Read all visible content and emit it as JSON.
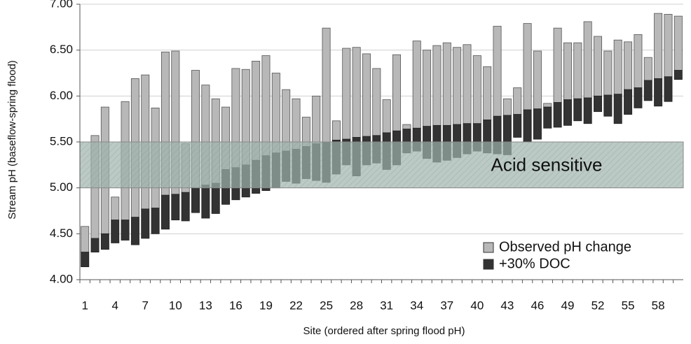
{
  "chart_data": {
    "type": "floating_bar",
    "x_label": "Site (ordered after spring flood pH)",
    "y_label": "Stream pH (baseflow-spring flood)",
    "categories": [
      1,
      null,
      null,
      4,
      null,
      null,
      7,
      null,
      null,
      10,
      null,
      null,
      13,
      null,
      null,
      16,
      null,
      null,
      19,
      null,
      null,
      22,
      null,
      null,
      25,
      null,
      null,
      28,
      null,
      null,
      31,
      null,
      null,
      34,
      null,
      null,
      37,
      null,
      null,
      40,
      null,
      null,
      43,
      null,
      null,
      46,
      null,
      null,
      49,
      null,
      null,
      52,
      null,
      null,
      55,
      null,
      null,
      58,
      null,
      null
    ],
    "spring_flood_ph": [
      4.3,
      4.45,
      4.5,
      4.65,
      4.65,
      4.68,
      4.77,
      4.78,
      4.92,
      4.93,
      4.95,
      5.0,
      5.03,
      5.05,
      5.2,
      5.22,
      5.25,
      5.3,
      5.35,
      5.38,
      5.4,
      5.42,
      5.45,
      5.48,
      5.5,
      5.52,
      5.53,
      5.55,
      5.56,
      5.57,
      5.6,
      5.62,
      5.64,
      5.65,
      5.67,
      5.68,
      5.68,
      5.69,
      5.7,
      5.7,
      5.74,
      5.78,
      5.79,
      5.8,
      5.85,
      5.86,
      5.88,
      5.93,
      5.96,
      5.97,
      5.98,
      6.0,
      6.01,
      6.02,
      6.07,
      6.09,
      6.17,
      6.19,
      6.21,
      6.28
    ],
    "series": [
      {
        "name": "Observed pH change",
        "color": "#b8b8b8",
        "values": [
          4.58,
          5.57,
          5.88,
          4.9,
          5.94,
          6.19,
          6.23,
          5.87,
          6.48,
          6.49,
          5.48,
          6.28,
          6.12,
          5.97,
          5.88,
          6.3,
          6.29,
          6.38,
          6.44,
          6.25,
          6.07,
          5.97,
          5.77,
          6.0,
          6.74,
          5.73,
          6.52,
          6.53,
          6.46,
          6.3,
          5.96,
          6.45,
          5.69,
          6.6,
          6.5,
          6.55,
          6.58,
          6.53,
          6.56,
          6.44,
          6.32,
          6.76,
          5.97,
          6.09,
          6.79,
          6.49,
          5.92,
          6.74,
          6.58,
          6.58,
          6.81,
          6.65,
          6.49,
          6.61,
          6.59,
          6.67,
          6.42,
          6.9,
          6.89,
          6.87
        ]
      },
      {
        "name": "+30% DOC",
        "color": "#333333",
        "values": [
          4.14,
          4.3,
          4.33,
          4.4,
          4.43,
          4.38,
          4.45,
          4.5,
          4.55,
          4.65,
          4.64,
          4.73,
          4.67,
          4.72,
          4.82,
          4.87,
          4.9,
          4.94,
          4.97,
          5.0,
          5.07,
          5.05,
          5.1,
          5.08,
          5.06,
          5.15,
          5.25,
          5.13,
          5.25,
          5.27,
          5.2,
          5.25,
          5.38,
          5.4,
          5.32,
          5.28,
          5.3,
          5.33,
          5.37,
          5.4,
          5.38,
          5.37,
          5.36,
          5.55,
          5.5,
          5.53,
          5.65,
          5.66,
          5.68,
          5.73,
          5.7,
          5.83,
          5.78,
          5.7,
          5.8,
          5.87,
          5.95,
          5.89,
          5.94,
          6.18
        ]
      }
    ],
    "band": {
      "text": "Acid sensitive",
      "range": [
        5.0,
        5.5
      ],
      "color": "#9fb3ad"
    },
    "ylim": [
      4.0,
      7.0
    ],
    "yticks": [
      {
        "value": 4,
        "label": "4.00"
      },
      {
        "value": 4.5,
        "label": "4.50"
      },
      {
        "value": 5,
        "label": "5.00"
      },
      {
        "value": 5.5,
        "label": "5.50"
      },
      {
        "value": 6,
        "label": "6.00"
      },
      {
        "value": 6.5,
        "label": "6.50"
      },
      {
        "value": 7,
        "label": "7.00"
      }
    ],
    "grid": true,
    "legend": "bottom-right"
  }
}
